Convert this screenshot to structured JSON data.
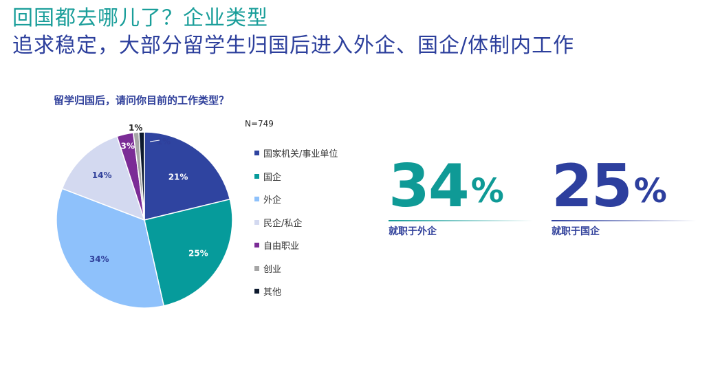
{
  "header": {
    "title_line1": "回国都去哪儿了？企业类型",
    "title_line2": "追求稳定，大部分留学生归国后进入外企、国企/体制内工作"
  },
  "chart_data": {
    "type": "pie",
    "title": "留学归国后，请问你目前的工作类型？",
    "note": "N=749",
    "slices": [
      {
        "label": "国家机关/事业单位",
        "value": 21,
        "value_label": "21%",
        "color": "#2f44a0"
      },
      {
        "label": "国企",
        "value": 25,
        "value_label": "25%",
        "color": "#069b9b"
      },
      {
        "label": "外企",
        "value": 34,
        "value_label": "34%",
        "color": "#8ec1fb"
      },
      {
        "label": "民企/私企",
        "value": 14,
        "value_label": "14%",
        "color": "#d3d9f0"
      },
      {
        "label": "自由职业",
        "value": 3,
        "value_label": "3%",
        "color": "#7b2c96"
      },
      {
        "label": "创业",
        "value": 1,
        "value_label": "1%",
        "color": "#a6a6a6"
      },
      {
        "label": "其他",
        "value": 1,
        "value_label": "1%",
        "color": "#0d1a2e"
      }
    ],
    "legend_position": "right"
  },
  "kpis": [
    {
      "value": "34",
      "unit": "%",
      "label": "就职于外企",
      "color": "#0f9a96"
    },
    {
      "value": "25",
      "unit": "%",
      "label": "就职于国企",
      "color": "#2d3f9e"
    }
  ]
}
